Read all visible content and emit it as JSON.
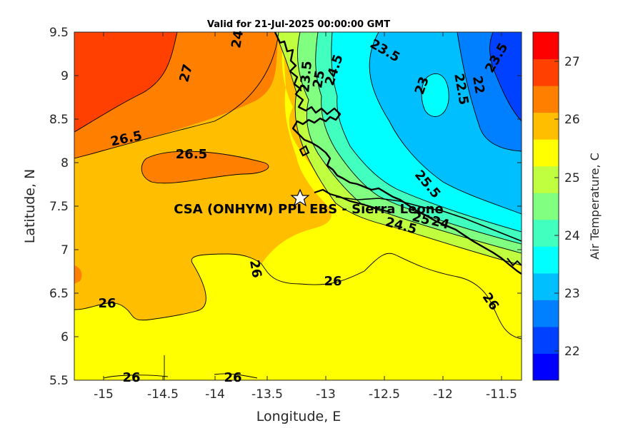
{
  "map": {
    "title": "Valid for 21-Jul-2025 00:00:00 GMT",
    "xlabel": "Longitude, E",
    "ylabel": "Latitude, N",
    "x_ticks": [
      "-15",
      "-14.5",
      "-14",
      "-13.5",
      "-13",
      "-12.5",
      "-12",
      "-11.5"
    ],
    "y_ticks": [
      "9.5",
      "9",
      "8.5",
      "8",
      "7.5",
      "7",
      "6.5",
      "6",
      "5.5"
    ],
    "site": {
      "label": "CSA (ONHYM) PPL EBS - Sierra Leone",
      "marker": "star-icon"
    },
    "contour_labels": [
      "27",
      "26.5",
      "26.5",
      "26",
      "26",
      "26",
      "26",
      "26",
      "26",
      "24",
      "24.5",
      "25",
      "23.5",
      "23.5",
      "23",
      "22.5",
      "22",
      "23.5",
      "25.5",
      "24.5",
      "24",
      "25"
    ]
  },
  "colorbar": {
    "label": "Air Temperature, C",
    "ticks": [
      "27",
      "26",
      "25",
      "24",
      "23",
      "22"
    ],
    "colors": [
      "#0000ff",
      "#0040ff",
      "#0080ff",
      "#00bfff",
      "#00ffff",
      "#40ffbf",
      "#80ff80",
      "#bfff40",
      "#ffff00",
      "#ffbf00",
      "#ff8000",
      "#ff4000",
      "#ff0000"
    ]
  }
}
